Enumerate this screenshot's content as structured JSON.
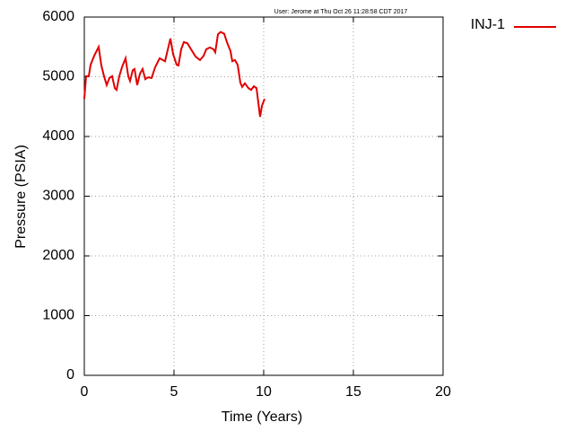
{
  "chart_data": {
    "type": "line",
    "annotation": "User: Jerome at Thu Oct 26 11:28:58 CDT 2017",
    "xlabel": "Time (Years)",
    "ylabel": "Pressure (PSIA)",
    "xlim": [
      0,
      20
    ],
    "xticks": [
      0,
      5,
      10,
      15,
      20
    ],
    "ylim": [
      0,
      6000
    ],
    "yticks": [
      0,
      1000,
      2000,
      3000,
      4000,
      5000,
      6000
    ],
    "grid": true,
    "legend": "right",
    "x": [
      0,
      0.1,
      0.25,
      0.35,
      0.55,
      0.8,
      0.95,
      1.1,
      1.25,
      1.4,
      1.55,
      1.7,
      1.8,
      1.95,
      2.1,
      2.3,
      2.45,
      2.55,
      2.7,
      2.8,
      2.95,
      3.1,
      3.25,
      3.4,
      3.55,
      3.75,
      3.95,
      4.2,
      4.5,
      4.8,
      4.95,
      5.15,
      5.25,
      5.4,
      5.55,
      5.75,
      5.95,
      6.2,
      6.45,
      6.65,
      6.8,
      7.0,
      7.2,
      7.3,
      7.45,
      7.6,
      7.8,
      7.95,
      8.15,
      8.25,
      8.4,
      8.55,
      8.7,
      8.8,
      8.95,
      9.15,
      9.3,
      9.45,
      9.6,
      9.8,
      9.9,
      10.05
    ],
    "series": [
      {
        "name": "INJ-1",
        "color": "#e00000",
        "values": [
          4630,
          5010,
          5010,
          5200,
          5350,
          5500,
          5190,
          5010,
          4860,
          4980,
          5010,
          4810,
          4780,
          5010,
          5160,
          5310,
          5010,
          4930,
          5110,
          5130,
          4860,
          5050,
          5130,
          4960,
          4990,
          4980,
          5160,
          5310,
          5260,
          5640,
          5380,
          5200,
          5190,
          5460,
          5580,
          5560,
          5460,
          5340,
          5280,
          5350,
          5460,
          5490,
          5460,
          5410,
          5710,
          5750,
          5720,
          5580,
          5430,
          5260,
          5280,
          5200,
          4900,
          4830,
          4890,
          4810,
          4780,
          4840,
          4810,
          4330,
          4510,
          4630
        ]
      }
    ]
  }
}
